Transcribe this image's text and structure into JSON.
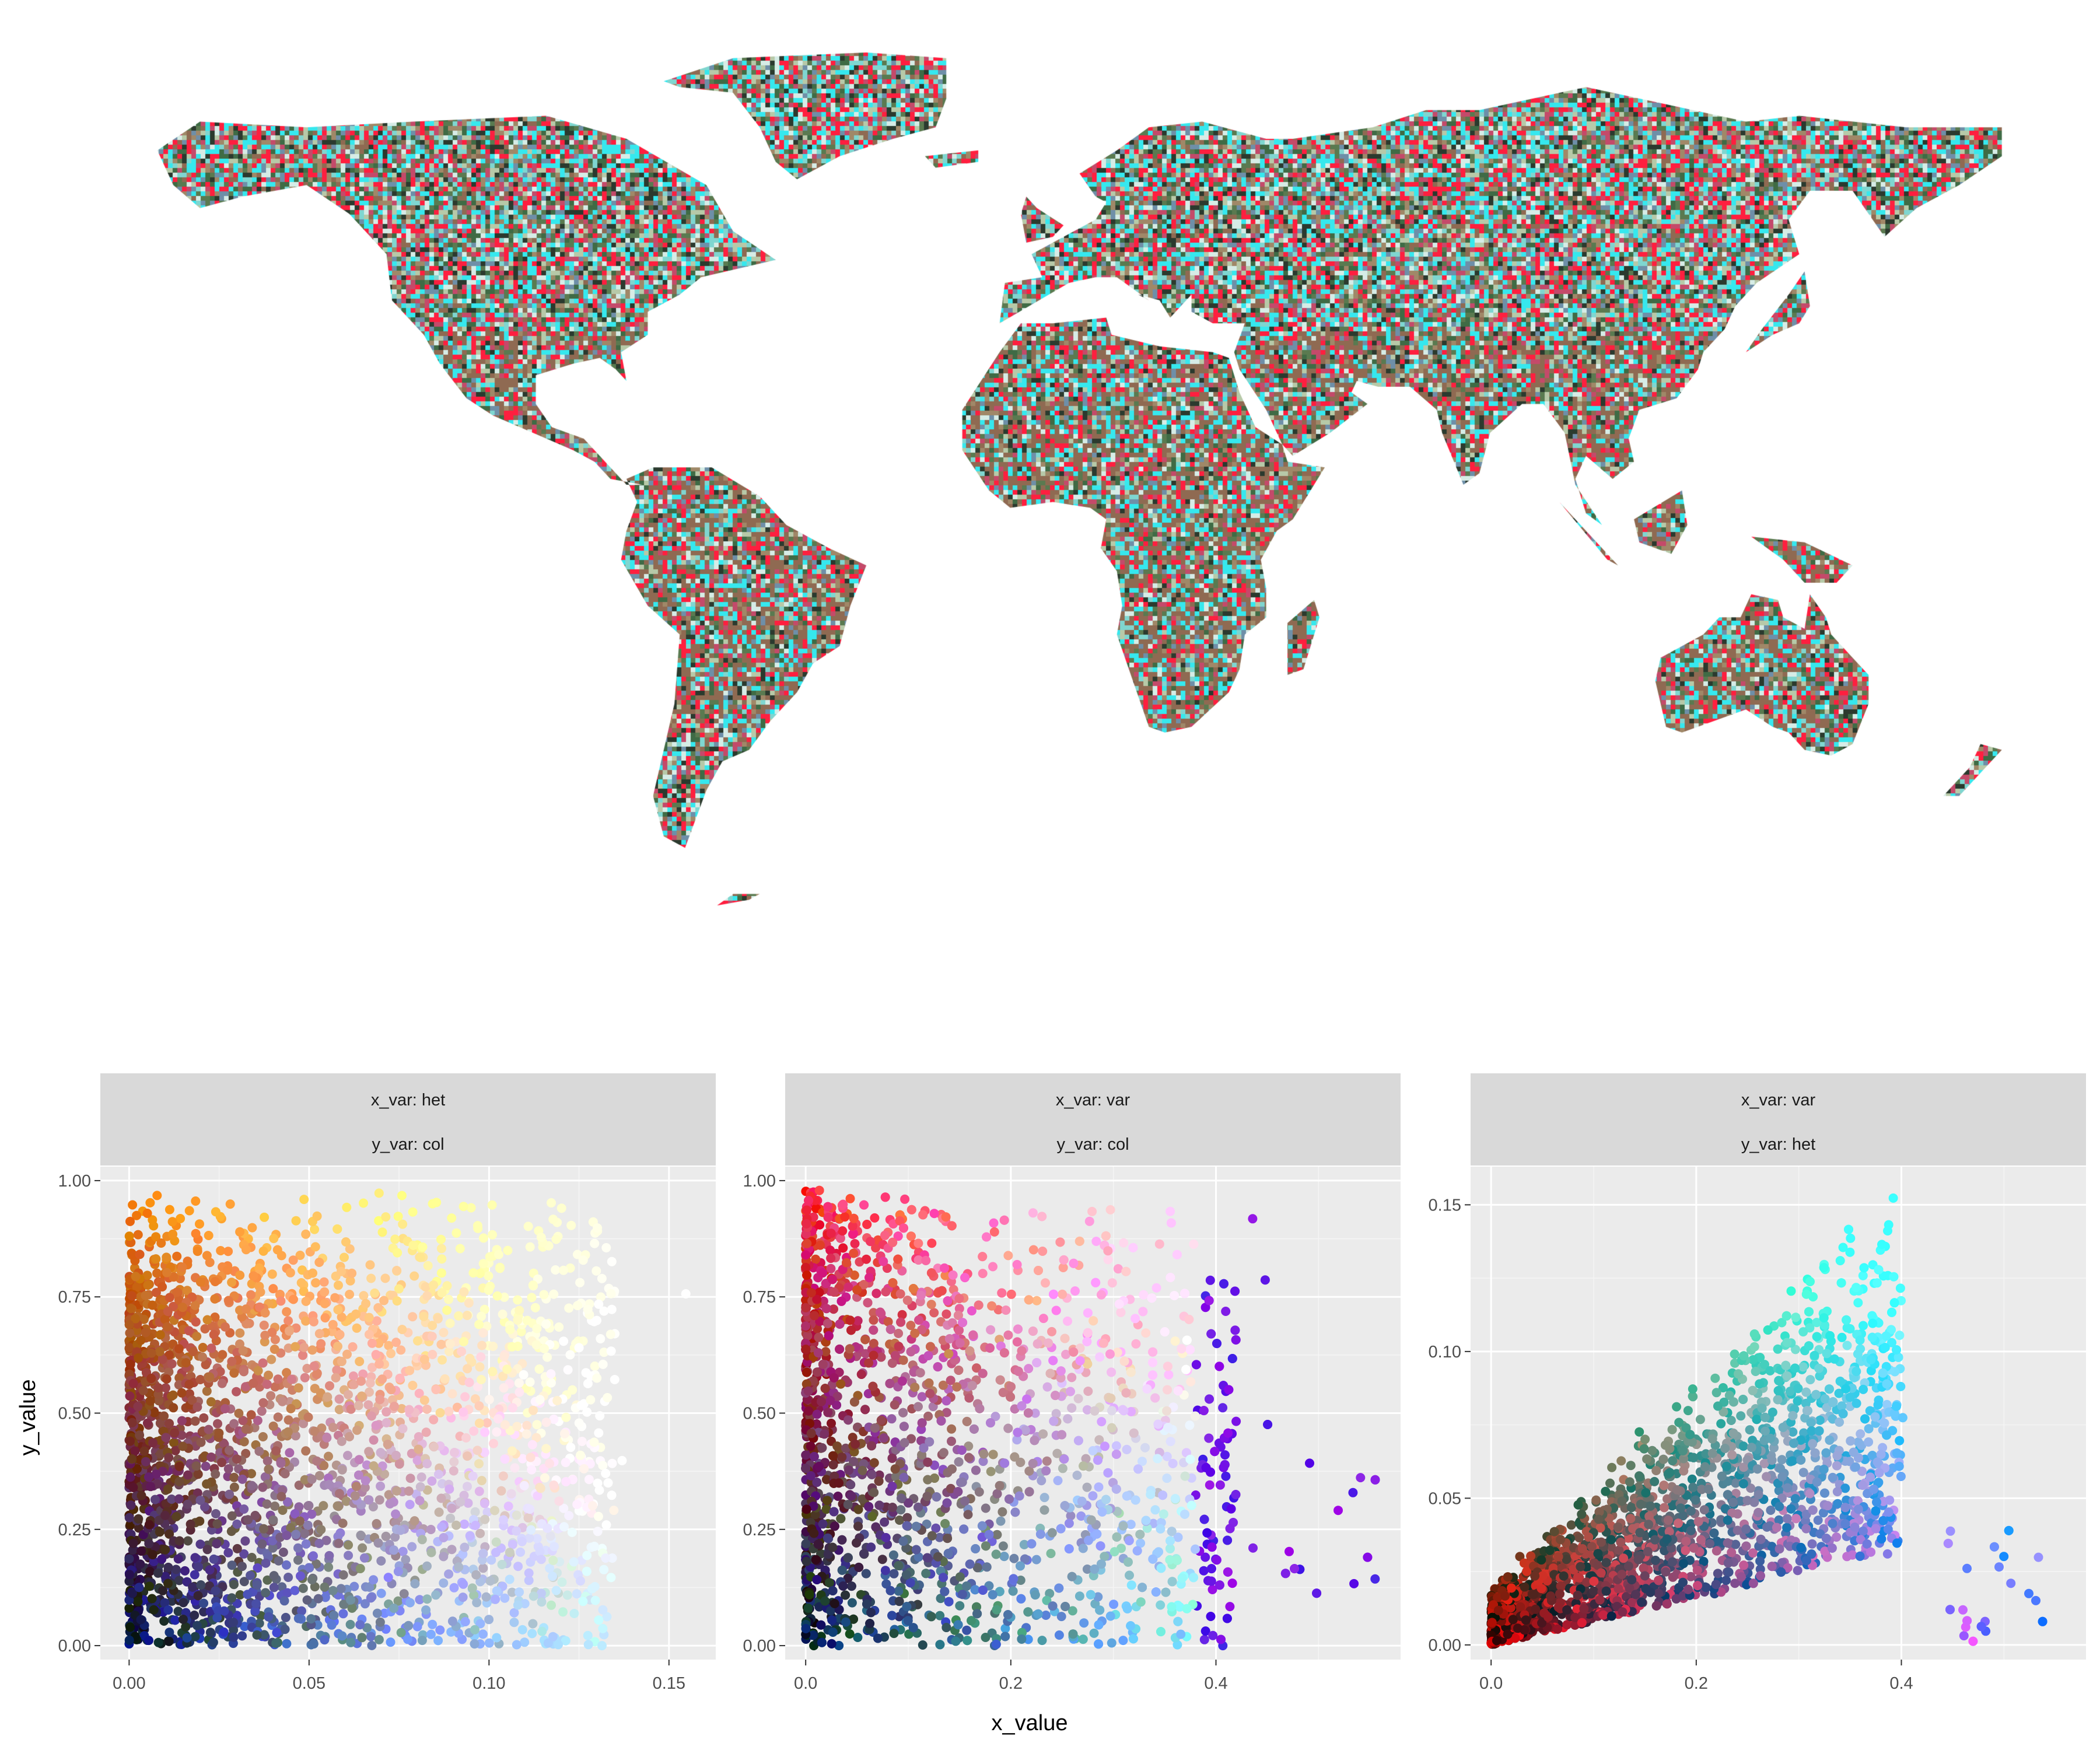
{
  "map": {
    "description_colors": {
      "ocean": "#ffffff",
      "vegetation": "#3f6b45",
      "arid": "#8f6a52",
      "high_col": "#ff1f3f",
      "high_var": "#36e8ee",
      "pale": "#d6ece6"
    }
  },
  "panel_bg": "#ebebeb",
  "strip_bg": "#d9d9d9",
  "x_title": "x_value",
  "y_title": "y_value",
  "chart_data": [
    {
      "type": "scatter",
      "facet": [
        "x_var: het",
        "y_var: col"
      ],
      "xlim": [
        -0.008,
        0.163
      ],
      "ylim": [
        -0.03,
        1.03
      ],
      "x_ticks": [
        0.0,
        0.05,
        0.1,
        0.15
      ],
      "x_tick_labels": [
        "0.00",
        "0.05",
        "0.10",
        "0.15"
      ],
      "y_ticks": [
        0.0,
        0.25,
        0.5,
        0.75,
        1.0
      ],
      "y_tick_labels": [
        "0.00",
        "0.25",
        "0.50",
        "0.75",
        "1.00"
      ],
      "points_approx": {
        "x_range": [
          0.0,
          0.158
        ],
        "y_range": [
          0.0,
          0.98
        ],
        "note": "dense cloud; color encodes RGB composite (red=col, green/blue=het)"
      },
      "grid": true,
      "legend": "none"
    },
    {
      "type": "scatter",
      "facet": [
        "x_var: var",
        "y_var: col"
      ],
      "xlim": [
        -0.02,
        0.58
      ],
      "ylim": [
        -0.03,
        1.03
      ],
      "x_ticks": [
        0.0,
        0.2,
        0.4
      ],
      "x_tick_labels": [
        "0.0",
        "0.2",
        "0.4"
      ],
      "y_ticks": [
        0.0,
        0.25,
        0.5,
        0.75,
        1.0
      ],
      "y_tick_labels": [
        "0.00",
        "0.25",
        "0.50",
        "0.75",
        "1.00"
      ],
      "points_approx": {
        "x_range": [
          0.0,
          0.56
        ],
        "y_range": [
          0.0,
          0.98
        ]
      },
      "grid": true,
      "legend": "none"
    },
    {
      "type": "scatter",
      "facet": [
        "x_var: var",
        "y_var: het"
      ],
      "xlim": [
        -0.02,
        0.58
      ],
      "ylim": [
        -0.005,
        0.163
      ],
      "x_ticks": [
        0.0,
        0.2,
        0.4
      ],
      "x_tick_labels": [
        "0.0",
        "0.2",
        "0.4"
      ],
      "y_ticks": [
        0.0,
        0.05,
        0.1,
        0.15
      ],
      "y_tick_labels": [
        "0.00",
        "0.05",
        "0.10",
        "0.15"
      ],
      "points_approx": {
        "x_range": [
          0.0,
          0.56
        ],
        "y_range": [
          0.0,
          0.158
        ]
      },
      "grid": true,
      "legend": "none"
    }
  ]
}
